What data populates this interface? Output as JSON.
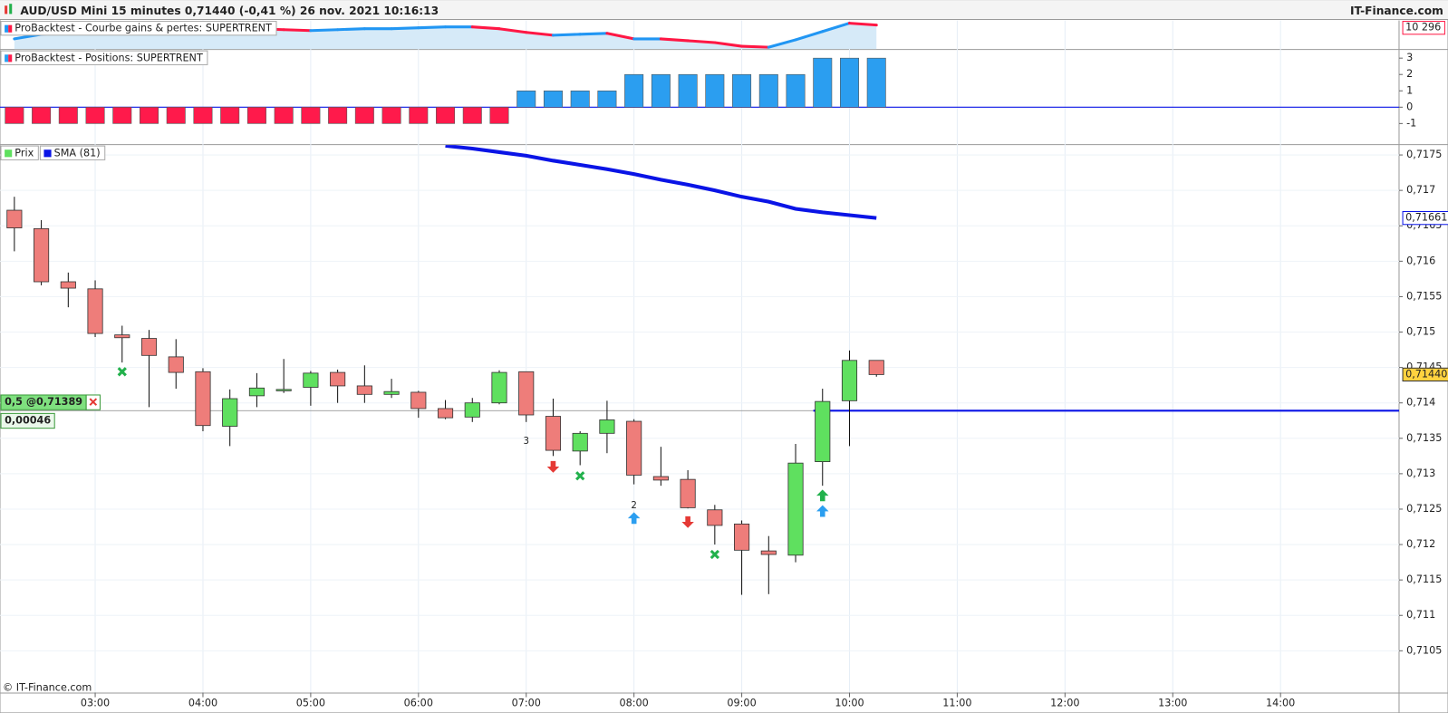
{
  "header": {
    "title": "AUD/USD Mini 15 minutes 0,71440 (-0,41 %) 26 nov. 2021 10:16:13",
    "brand": "IT-Finance.com"
  },
  "footer": "© IT-Finance.com",
  "chart_data": [
    {
      "type": "line",
      "x": [
        "02:15",
        "02:30",
        "02:45",
        "03:00",
        "03:15",
        "03:30",
        "03:45",
        "04:00",
        "04:15",
        "04:30",
        "04:45",
        "05:00",
        "05:15",
        "05:30",
        "05:45",
        "06:00",
        "06:15",
        "06:30",
        "06:45",
        "07:00",
        "07:15",
        "07:30",
        "07:45",
        "08:00",
        "08:15",
        "08:30",
        "08:45",
        "09:00",
        "09:15",
        "09:30",
        "09:45",
        "10:00",
        "10:15"
      ],
      "ylim": [
        9776,
        10396
      ],
      "series": [
        {
          "name": "ProBacktest - Courbe gains & pertes: SUPERTRENT",
          "up_color": "#2196f3",
          "down_color": "#ff1744",
          "fill": "#d6eaf8",
          "values": [
            9996,
            10096,
            10136,
            10176,
            10196,
            10196,
            10216,
            10216,
            10236,
            10216,
            10196,
            10176,
            10196,
            10216,
            10216,
            10236,
            10256,
            10256,
            10216,
            10136,
            10076,
            10096,
            10116,
            9996,
            9996,
            9956,
            9916,
            9836,
            9816,
            9976,
            10156,
            10336,
            10296
          ],
          "last_label": "10 296"
        }
      ]
    },
    {
      "type": "bar",
      "x": [
        "02:15",
        "02:30",
        "02:45",
        "03:00",
        "03:15",
        "03:30",
        "03:45",
        "04:00",
        "04:15",
        "04:30",
        "04:45",
        "05:00",
        "05:15",
        "05:30",
        "05:45",
        "06:00",
        "06:15",
        "06:30",
        "06:45",
        "07:00",
        "07:15",
        "07:30",
        "07:45",
        "08:00",
        "08:15",
        "08:30",
        "08:45",
        "09:00",
        "09:15",
        "09:30",
        "09:45",
        "10:00",
        "10:15"
      ],
      "ylim": [
        -2.26,
        3.5
      ],
      "yticks": [
        -1,
        0,
        1,
        2,
        3
      ],
      "zero_color": "#0a14e6",
      "series": [
        {
          "name": "ProBacktest - Positions: SUPERTRENT",
          "up_color": "#2b9ef0",
          "down_color": "#ff1a4b",
          "values": [
            -1,
            -1,
            -1,
            -1,
            -1,
            -1,
            -1,
            -1,
            -1,
            -1,
            -1,
            -1,
            -1,
            -1,
            -1,
            -1,
            -1,
            -1,
            -1,
            1,
            1,
            1,
            1,
            2,
            2,
            2,
            2,
            2,
            2,
            2,
            3,
            3,
            3
          ]
        }
      ]
    },
    {
      "type": "candlestick",
      "x": [
        "02:15",
        "02:30",
        "02:45",
        "03:00",
        "03:15",
        "03:30",
        "03:45",
        "04:00",
        "04:15",
        "04:30",
        "04:45",
        "05:00",
        "05:15",
        "05:30",
        "05:45",
        "06:00",
        "06:15",
        "06:30",
        "06:45",
        "07:00",
        "07:15",
        "07:30",
        "07:45",
        "08:00",
        "08:15",
        "08:30",
        "08:45",
        "09:00",
        "09:15",
        "09:30",
        "09:45",
        "10:00",
        "10:15"
      ],
      "xlim": [
        "02:07",
        "15:06"
      ],
      "xticks": [
        "03:00",
        "04:00",
        "05:00",
        "06:00",
        "07:00",
        "08:00",
        "09:00",
        "10:00",
        "11:00",
        "12:00",
        "13:00",
        "14:00"
      ],
      "ylim": [
        0.70991,
        0.71764
      ],
      "yticks": [
        {
          "value": 0.7105,
          "label": "0,7105"
        },
        {
          "value": 0.711,
          "label": "0,711"
        },
        {
          "value": 0.7115,
          "label": "0,7115"
        },
        {
          "value": 0.712,
          "label": "0,712"
        },
        {
          "value": 0.7125,
          "label": "0,7125"
        },
        {
          "value": 0.713,
          "label": "0,713"
        },
        {
          "value": 0.7135,
          "label": "0,7135"
        },
        {
          "value": 0.714,
          "label": "0,714"
        },
        {
          "value": 0.7145,
          "label": "0,7145"
        },
        {
          "value": 0.715,
          "label": "0,715"
        },
        {
          "value": 0.7155,
          "label": "0,7155"
        },
        {
          "value": 0.716,
          "label": "0,716"
        },
        {
          "value": 0.7165,
          "label": "0,7165"
        },
        {
          "value": 0.717,
          "label": "0,717"
        },
        {
          "value": 0.7175,
          "label": "0,7175"
        }
      ],
      "grid": true,
      "series": [
        {
          "name": "Prix",
          "up_color": "#5fe05f",
          "down_color": "#ee7d7a",
          "open": [
            0.71672,
            0.71646,
            0.71571,
            0.71561,
            0.71496,
            0.71491,
            0.71465,
            0.71444,
            0.71367,
            0.7141,
            0.71418,
            0.71422,
            0.71443,
            0.71424,
            0.71412,
            0.71415,
            0.71392,
            0.7138,
            0.714,
            0.71444,
            0.71381,
            0.71332,
            0.71357,
            0.71374,
            0.71296,
            0.71292,
            0.71249,
            0.71229,
            0.71191,
            0.71185,
            0.71317,
            0.71403,
            0.7146
          ],
          "high": [
            0.71691,
            0.71658,
            0.71584,
            0.71573,
            0.71509,
            0.71503,
            0.7149,
            0.71449,
            0.71419,
            0.71442,
            0.71462,
            0.71445,
            0.71447,
            0.71453,
            0.71434,
            0.71417,
            0.71404,
            0.71407,
            0.71446,
            0.71444,
            0.71406,
            0.7136,
            0.71403,
            0.71377,
            0.71338,
            0.71305,
            0.71256,
            0.71234,
            0.71212,
            0.71342,
            0.7142,
            0.71474,
            0.7146
          ],
          "low": [
            0.71614,
            0.71566,
            0.71535,
            0.71493,
            0.71457,
            0.71394,
            0.7142,
            0.7136,
            0.71339,
            0.71394,
            0.71414,
            0.71396,
            0.714,
            0.714,
            0.71407,
            0.71379,
            0.71377,
            0.71373,
            0.71398,
            0.71373,
            0.71325,
            0.71312,
            0.71329,
            0.71285,
            0.71283,
            0.71251,
            0.712,
            0.71129,
            0.7113,
            0.71175,
            0.71283,
            0.71339,
            0.71437
          ],
          "close": [
            0.71647,
            0.71571,
            0.71562,
            0.71498,
            0.71492,
            0.71467,
            0.71443,
            0.71368,
            0.71406,
            0.71421,
            0.71419,
            0.71442,
            0.71424,
            0.71412,
            0.71416,
            0.71392,
            0.71379,
            0.714,
            0.71443,
            0.71383,
            0.71333,
            0.71357,
            0.71376,
            0.71298,
            0.71291,
            0.71252,
            0.71227,
            0.71192,
            0.71186,
            0.71315,
            0.71402,
            0.7146,
            0.7144
          ],
          "last_label": "0,71440"
        },
        {
          "name": "SMA (81)",
          "color": "#0a14e6",
          "values": [
            null,
            null,
            null,
            null,
            null,
            null,
            null,
            null,
            null,
            null,
            null,
            null,
            null,
            null,
            null,
            null,
            0.71763,
            0.71759,
            0.71754,
            0.71749,
            0.71742,
            0.71736,
            0.7173,
            0.71723,
            0.71715,
            0.71708,
            0.717,
            0.71691,
            0.71684,
            0.71674,
            0.71669,
            0.71665,
            0.71661
          ],
          "last_label": "0,71661"
        }
      ],
      "order": {
        "price": 0.71389,
        "label": "0,5 @0,71389",
        "gain_label": "0,00046",
        "color": "#0a14e6"
      },
      "markers": [
        {
          "x": "03:15",
          "price": 0.71444,
          "symbol": "cross",
          "color": "#22b14c"
        },
        {
          "x": "07:15",
          "price": 0.71311,
          "symbol": "down",
          "color": "#e53935"
        },
        {
          "x": "07:30",
          "price": 0.71297,
          "symbol": "cross",
          "color": "#22b14c"
        },
        {
          "x": "08:00",
          "price": 0.71236,
          "symbol": "up",
          "color": "#2b9ef0"
        },
        {
          "x": "08:30",
          "price": 0.71233,
          "symbol": "down",
          "color": "#e53935"
        },
        {
          "x": "08:45",
          "price": 0.71186,
          "symbol": "cross",
          "color": "#22b14c"
        },
        {
          "x": "09:45",
          "price": 0.71246,
          "symbol": "up",
          "color": "#2b9ef0"
        },
        {
          "x": "09:45",
          "price": 0.71268,
          "symbol": "up",
          "color": "#22b14c"
        },
        {
          "x": "07:00",
          "price": 0.71346,
          "label": "3"
        },
        {
          "x": "08:00",
          "price": 0.71255,
          "label": "2"
        }
      ]
    }
  ]
}
